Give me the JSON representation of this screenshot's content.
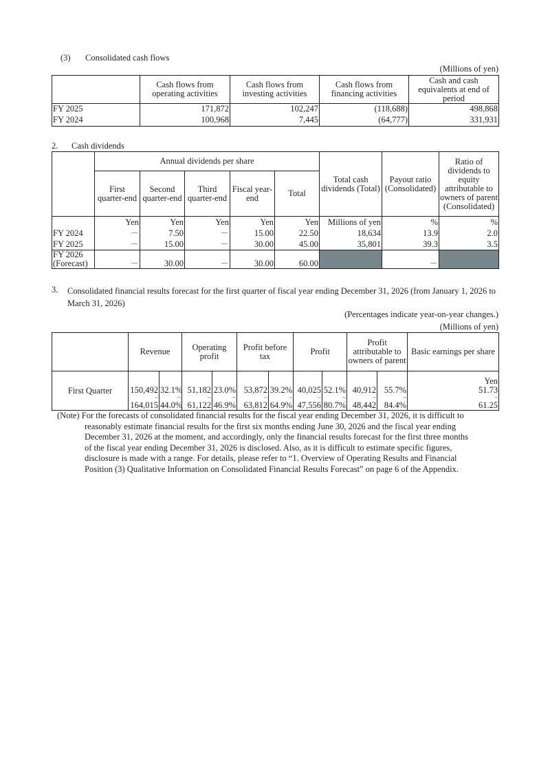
{
  "cash_flows": {
    "heading_num": "(3)",
    "heading": "Consolidated cash flows",
    "unit": "(Millions of yen)",
    "columns": [
      "Cash flows from operating activities",
      "Cash flows from investing activities",
      "Cash flows from financing activities",
      "Cash and cash equivalents at end of period"
    ],
    "rows": [
      {
        "label": "FY  2025",
        "values": [
          "171,872",
          "102,247",
          "(118,688)",
          "498,868"
        ]
      },
      {
        "label": "FY  2024",
        "values": [
          "100,968",
          "7,445",
          "(64,777)",
          "331,931"
        ]
      }
    ]
  },
  "dividends": {
    "heading_num": "2.",
    "heading": "Cash dividends",
    "group_header": "Annual dividends per share",
    "columns": [
      "First quarter-end",
      "Second quarter-end",
      "Third quarter-end",
      "Fiscal year-end",
      "Total",
      "Total cash dividends (Total)",
      "Payout ratio (Consolidated)",
      "Ratio of dividends to equity attributable to owners of parent (Consolidated)"
    ],
    "units": [
      "Yen",
      "Yen",
      "Yen",
      "Yen",
      "Yen",
      "Millions of yen",
      "%",
      "%"
    ],
    "rows": [
      {
        "label": "FY  2024",
        "values": [
          "－",
          "7.50",
          "－",
          "15.00",
          "22.50",
          "18,634",
          "13.9",
          "2.0"
        ]
      },
      {
        "label": "FY  2025",
        "values": [
          "－",
          "15.00",
          "－",
          "30.00",
          "45.00",
          "35,801",
          "39.3",
          "3.5"
        ]
      },
      {
        "label": "FY 2026 (Forecast)",
        "values": [
          "－",
          "30.00",
          "－",
          "30.00",
          "60.00",
          "",
          "－",
          ""
        ]
      }
    ]
  },
  "forecast": {
    "heading_num": "3.",
    "heading": "Consolidated financial results forecast for the first quarter of fiscal year ending December 31, 2026  (from January 1, 2026  to March 31, 2026)",
    "note_pct": "(Percentages indicate year-on-year changes.)",
    "unit": "(Millions of yen)",
    "columns": [
      "Revenue",
      "Operating profit",
      "Profit before tax",
      "Profit",
      "Profit attributable to owners of parent",
      "Basic earnings per share"
    ],
    "eps_unit": "Yen",
    "row_label": "First Quarter",
    "tilde": "~",
    "low": [
      "150,492",
      "32.1%",
      "51,182",
      "23.0%",
      "53,872",
      "39.2%",
      "40,025",
      "52.1%",
      "40,912",
      "55.7%",
      "51.73"
    ],
    "high": [
      "164,015",
      "44.0%",
      "61,122",
      "46.9%",
      "63,812",
      "64.9%",
      "47,556",
      "80.7%",
      "48,442",
      "84.4%",
      "61.25"
    ],
    "note_prefix": "(Note)",
    "note_lines": [
      "For the forecasts of consolidated financial results for the fiscal year ending December 31, 2026, it is difficult to",
      "reasonably estimate financial results for the first six months ending June 30, 2026  and the fiscal year ending",
      "December 31, 2026  at the moment, and accordingly, only the financial results forecast for the first three months",
      "of the fiscal year ending December 31, 2026  is disclosed. Also, as it is difficult to estimate specific figures,",
      "disclosure is made with a range. For details, please refer to “1. Overview of Operating Results and Financial",
      "Position (3) Qualitative Information on Consolidated Financial Results Forecast”  on page 6 of the Appendix."
    ]
  }
}
